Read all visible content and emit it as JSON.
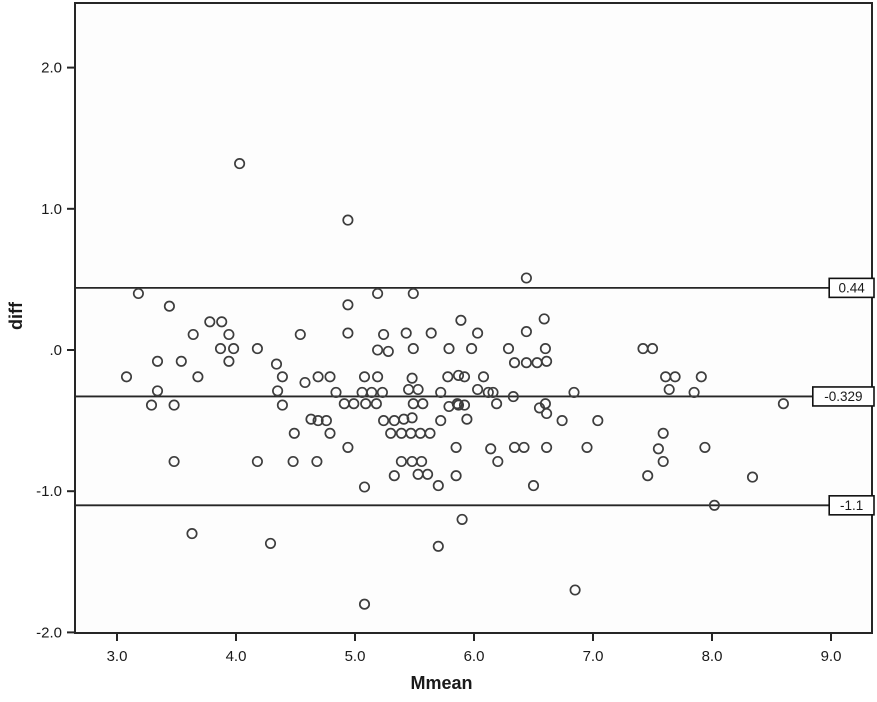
{
  "chart_data": {
    "type": "scatter",
    "title": "",
    "xlabel": "Mmean",
    "ylabel": "diff",
    "xlim": [
      2.65,
      9.35
    ],
    "ylim": [
      -2.0,
      2.46
    ],
    "grid": false,
    "legend": "none",
    "marker": {
      "shape": "open-circle",
      "radius": 5,
      "color": "#3d3d3d"
    },
    "frame_color": "#262626",
    "x_ticks": {
      "values": [
        3.0,
        4.0,
        5.0,
        6.0,
        7.0,
        8.0,
        9.0
      ],
      "labels": [
        "3.0",
        "4.0",
        "5.0",
        "6.0",
        "7.0",
        "8.0",
        "9.0"
      ]
    },
    "y_ticks": {
      "values": [
        2.0,
        1.0,
        0.0,
        -1.0,
        -2.0
      ],
      "labels": [
        "2.0",
        "1.0",
        ".0",
        "-1.0",
        "-2.0"
      ]
    },
    "reference_lines": [
      {
        "value": 0.44,
        "label": "0.44",
        "color": "#262626"
      },
      {
        "value": -0.329,
        "label": "-0.329",
        "color": "#262626"
      },
      {
        "value": -1.1,
        "label": "-1.1",
        "color": "#262626"
      }
    ],
    "points": [
      [
        4.03,
        1.32
      ],
      [
        4.94,
        0.92
      ],
      [
        6.44,
        0.51
      ],
      [
        3.18,
        0.4
      ],
      [
        5.19,
        0.4
      ],
      [
        5.49,
        0.4
      ],
      [
        3.44,
        0.31
      ],
      [
        4.94,
        0.32
      ],
      [
        3.78,
        0.2
      ],
      [
        3.88,
        0.2
      ],
      [
        5.89,
        0.21
      ],
      [
        6.59,
        0.22
      ],
      [
        3.64,
        0.11
      ],
      [
        3.94,
        0.11
      ],
      [
        4.54,
        0.11
      ],
      [
        4.94,
        0.12
      ],
      [
        5.24,
        0.11
      ],
      [
        5.43,
        0.12
      ],
      [
        5.64,
        0.12
      ],
      [
        6.03,
        0.12
      ],
      [
        6.44,
        0.13
      ],
      [
        3.87,
        0.01
      ],
      [
        3.98,
        0.01
      ],
      [
        4.18,
        0.01
      ],
      [
        5.19,
        0.0
      ],
      [
        5.28,
        -0.01
      ],
      [
        5.49,
        0.01
      ],
      [
        5.79,
        0.01
      ],
      [
        5.98,
        0.01
      ],
      [
        6.29,
        0.01
      ],
      [
        6.6,
        0.01
      ],
      [
        7.42,
        0.01
      ],
      [
        7.5,
        0.01
      ],
      [
        3.34,
        -0.08
      ],
      [
        3.54,
        -0.08
      ],
      [
        3.94,
        -0.08
      ],
      [
        4.34,
        -0.1
      ],
      [
        6.34,
        -0.09
      ],
      [
        6.44,
        -0.09
      ],
      [
        6.53,
        -0.09
      ],
      [
        6.61,
        -0.08
      ],
      [
        3.08,
        -0.19
      ],
      [
        3.68,
        -0.19
      ],
      [
        4.39,
        -0.19
      ],
      [
        4.58,
        -0.23
      ],
      [
        4.69,
        -0.19
      ],
      [
        4.79,
        -0.19
      ],
      [
        5.08,
        -0.19
      ],
      [
        5.19,
        -0.19
      ],
      [
        5.48,
        -0.2
      ],
      [
        5.78,
        -0.19
      ],
      [
        5.87,
        -0.18
      ],
      [
        5.92,
        -0.19
      ],
      [
        6.08,
        -0.19
      ],
      [
        7.61,
        -0.19
      ],
      [
        7.69,
        -0.19
      ],
      [
        7.91,
        -0.19
      ],
      [
        3.34,
        -0.29
      ],
      [
        4.35,
        -0.29
      ],
      [
        4.84,
        -0.3
      ],
      [
        5.06,
        -0.3
      ],
      [
        5.14,
        -0.3
      ],
      [
        5.23,
        -0.3
      ],
      [
        5.45,
        -0.28
      ],
      [
        5.53,
        -0.28
      ],
      [
        5.72,
        -0.3
      ],
      [
        6.03,
        -0.28
      ],
      [
        6.12,
        -0.3
      ],
      [
        6.16,
        -0.3
      ],
      [
        6.33,
        -0.33
      ],
      [
        6.84,
        -0.3
      ],
      [
        7.64,
        -0.28
      ],
      [
        7.85,
        -0.3
      ],
      [
        3.29,
        -0.39
      ],
      [
        3.48,
        -0.39
      ],
      [
        4.39,
        -0.39
      ],
      [
        4.91,
        -0.38
      ],
      [
        4.99,
        -0.38
      ],
      [
        5.09,
        -0.38
      ],
      [
        5.18,
        -0.38
      ],
      [
        5.49,
        -0.38
      ],
      [
        5.57,
        -0.38
      ],
      [
        5.86,
        -0.38
      ],
      [
        6.19,
        -0.38
      ],
      [
        6.6,
        -0.38
      ],
      [
        8.6,
        -0.38
      ],
      [
        5.79,
        -0.4
      ],
      [
        5.87,
        -0.39
      ],
      [
        5.92,
        -0.39
      ],
      [
        6.55,
        -0.41
      ],
      [
        6.61,
        -0.45
      ],
      [
        4.63,
        -0.49
      ],
      [
        4.69,
        -0.5
      ],
      [
        4.76,
        -0.5
      ],
      [
        5.24,
        -0.5
      ],
      [
        5.33,
        -0.5
      ],
      [
        5.41,
        -0.49
      ],
      [
        5.48,
        -0.48
      ],
      [
        5.72,
        -0.5
      ],
      [
        5.94,
        -0.49
      ],
      [
        6.74,
        -0.5
      ],
      [
        7.04,
        -0.5
      ],
      [
        4.49,
        -0.59
      ],
      [
        4.79,
        -0.59
      ],
      [
        5.3,
        -0.59
      ],
      [
        5.39,
        -0.59
      ],
      [
        5.47,
        -0.59
      ],
      [
        5.55,
        -0.59
      ],
      [
        5.63,
        -0.59
      ],
      [
        7.59,
        -0.59
      ],
      [
        4.94,
        -0.69
      ],
      [
        5.85,
        -0.69
      ],
      [
        6.14,
        -0.7
      ],
      [
        6.34,
        -0.69
      ],
      [
        6.42,
        -0.69
      ],
      [
        6.61,
        -0.69
      ],
      [
        6.95,
        -0.69
      ],
      [
        7.55,
        -0.7
      ],
      [
        7.94,
        -0.69
      ],
      [
        3.48,
        -0.79
      ],
      [
        4.18,
        -0.79
      ],
      [
        4.48,
        -0.79
      ],
      [
        4.68,
        -0.79
      ],
      [
        5.39,
        -0.79
      ],
      [
        5.48,
        -0.79
      ],
      [
        5.56,
        -0.79
      ],
      [
        6.2,
        -0.79
      ],
      [
        7.59,
        -0.79
      ],
      [
        5.33,
        -0.89
      ],
      [
        5.53,
        -0.88
      ],
      [
        5.61,
        -0.88
      ],
      [
        5.85,
        -0.89
      ],
      [
        7.46,
        -0.89
      ],
      [
        8.34,
        -0.9
      ],
      [
        5.08,
        -0.97
      ],
      [
        5.7,
        -0.96
      ],
      [
        6.5,
        -0.96
      ],
      [
        8.02,
        -1.1
      ],
      [
        5.9,
        -1.2
      ],
      [
        3.63,
        -1.3
      ],
      [
        4.29,
        -1.37
      ],
      [
        5.7,
        -1.39
      ],
      [
        6.85,
        -1.7
      ],
      [
        5.08,
        -1.8
      ]
    ]
  }
}
